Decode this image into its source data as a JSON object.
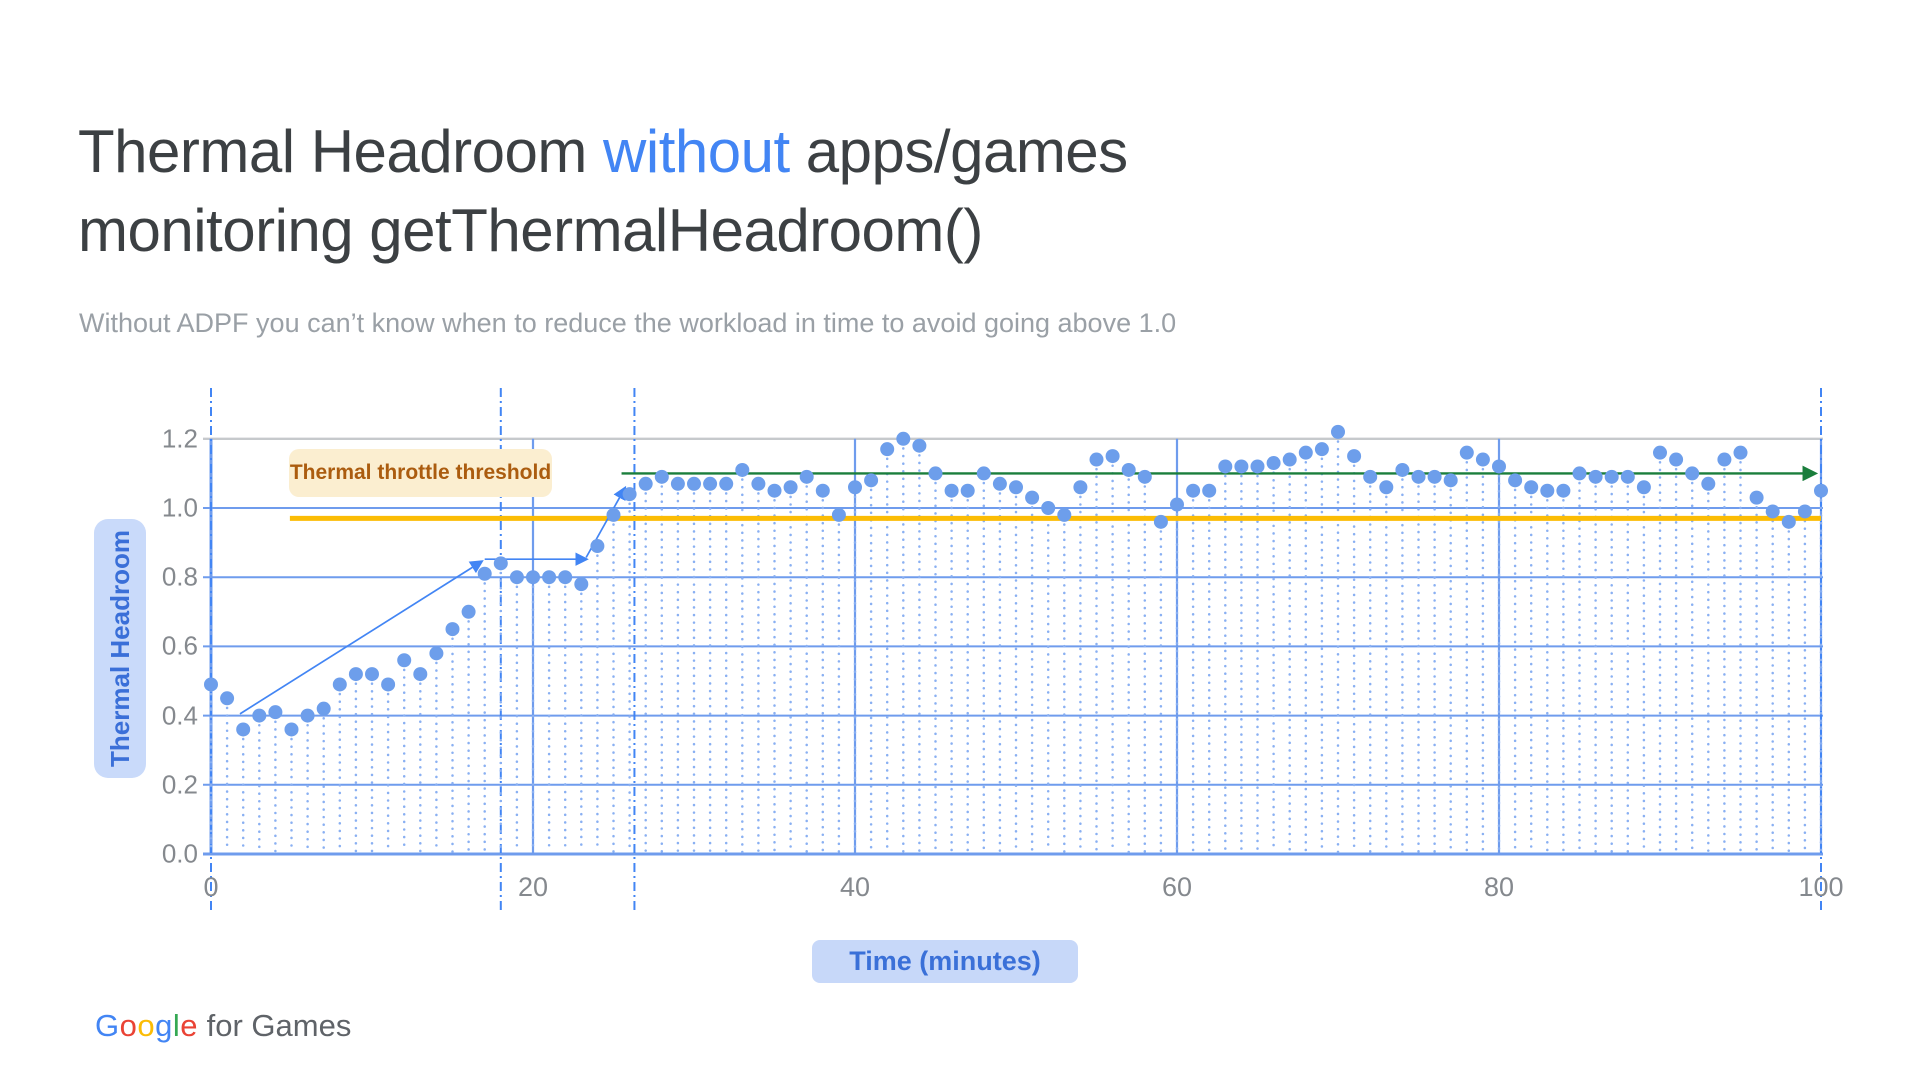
{
  "title": {
    "part1": "Thermal Headroom ",
    "highlight": "without",
    "part2": " apps/games",
    "line2": "monitoring getThermalHeadroom()",
    "color": "#3c4043",
    "highlight_color": "#4285f4"
  },
  "subtitle": {
    "text": "Without ADPF you can’t know when to reduce the workload in time to avoid going above 1.0"
  },
  "footer": {
    "logo_letters": [
      {
        "ch": "G",
        "color": "#4285F4"
      },
      {
        "ch": "o",
        "color": "#EA4335"
      },
      {
        "ch": "o",
        "color": "#FBBC05"
      },
      {
        "ch": "g",
        "color": "#4285F4"
      },
      {
        "ch": "l",
        "color": "#34A853"
      },
      {
        "ch": "e",
        "color": "#EA4335"
      }
    ],
    "logo_suffix": " for Games",
    "suffix_color": "#5f6368"
  },
  "chart_data": {
    "type": "scatter",
    "xlabel": "Time (minutes)",
    "ylabel": "Thermal Headroom",
    "xlim": [
      0,
      100
    ],
    "ylim": [
      0,
      1.2
    ],
    "x_ticks": [
      0,
      20,
      40,
      60,
      80,
      100
    ],
    "y_ticks": [
      "0.0",
      "0.2",
      "0.4",
      "0.6",
      "0.8",
      "1.0",
      "1.2"
    ],
    "grid": true,
    "legend": "none",
    "point_color": "#6d9eeb",
    "stem_color": "#8ab0f2",
    "grid_color": "#6f9ced",
    "top_grid_color": "#c6c9cc",
    "event_line_color": "#4285f4",
    "event_lines_x": [
      0,
      18,
      26.3,
      100
    ],
    "threshold": {
      "value": 0.97,
      "label": "Thermal throttle threshold",
      "color": "#fbbc04",
      "label_color": "#ab5c0f",
      "label_bg": "#fbeed0",
      "x_range": [
        4.9,
        100
      ]
    },
    "safe_line": {
      "value": 1.1,
      "color": "#1a7e3c",
      "x_range": [
        25.5,
        100
      ],
      "arrow": true
    },
    "trend_arrows": [
      {
        "from": [
          1.8,
          0.405
        ],
        "to": [
          16.8,
          0.845
        ]
      },
      {
        "from": [
          17.0,
          0.852
        ],
        "to": [
          23.3,
          0.852
        ]
      },
      {
        "from": [
          23.3,
          0.857
        ],
        "to": [
          25.7,
          1.057
        ]
      }
    ],
    "x": [
      0,
      1,
      2,
      3,
      4,
      5,
      6,
      7,
      8,
      9,
      10,
      11,
      12,
      13,
      14,
      15,
      16,
      17,
      18,
      19,
      20,
      21,
      22,
      23,
      24,
      25,
      26,
      27,
      28,
      29,
      30,
      31,
      32,
      33,
      34,
      35,
      36,
      37,
      38,
      39,
      40,
      41,
      42,
      43,
      44,
      45,
      46,
      47,
      48,
      49,
      50,
      51,
      52,
      53,
      54,
      55,
      56,
      57,
      58,
      59,
      60,
      61,
      62,
      63,
      64,
      65,
      66,
      67,
      68,
      69,
      70,
      71,
      72,
      73,
      74,
      75,
      76,
      77,
      78,
      79,
      80,
      81,
      82,
      83,
      84,
      85,
      86,
      87,
      88,
      89,
      90,
      91,
      92,
      93,
      94,
      95,
      96,
      97,
      98,
      99,
      100
    ],
    "values": [
      0.49,
      0.45,
      0.36,
      0.4,
      0.41,
      0.36,
      0.4,
      0.42,
      0.49,
      0.52,
      0.52,
      0.49,
      0.56,
      0.52,
      0.58,
      0.65,
      0.7,
      0.81,
      0.84,
      0.8,
      0.8,
      0.8,
      0.8,
      0.78,
      0.89,
      0.98,
      1.04,
      1.07,
      1.09,
      1.07,
      1.07,
      1.07,
      1.07,
      1.11,
      1.07,
      1.05,
      1.06,
      1.09,
      1.05,
      0.98,
      1.06,
      1.08,
      1.17,
      1.2,
      1.18,
      1.1,
      1.05,
      1.05,
      1.1,
      1.07,
      1.06,
      1.03,
      1.0,
      0.98,
      1.06,
      1.14,
      1.15,
      1.11,
      1.09,
      0.96,
      1.01,
      1.05,
      1.05,
      1.12,
      1.12,
      1.12,
      1.13,
      1.14,
      1.16,
      1.17,
      1.22,
      1.15,
      1.09,
      1.06,
      1.11,
      1.09,
      1.09,
      1.08,
      1.16,
      1.14,
      1.12,
      1.08,
      1.06,
      1.05,
      1.05,
      1.1,
      1.09,
      1.09,
      1.09,
      1.06,
      1.16,
      1.14,
      1.1,
      1.07,
      1.14,
      1.16,
      1.03,
      0.99,
      0.96,
      0.99,
      1.05
    ]
  }
}
